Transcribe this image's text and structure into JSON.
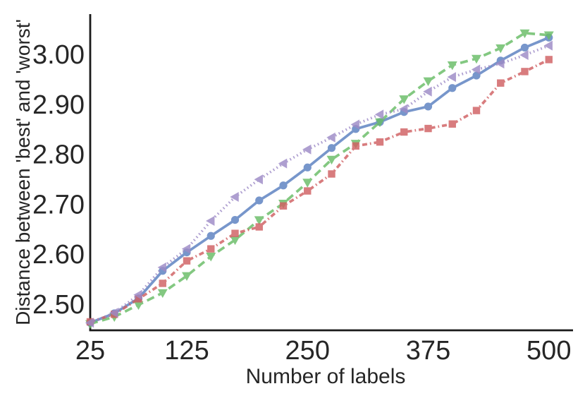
{
  "figure": {
    "background": "#ffffff",
    "text_color": "#262626",
    "axis_color": "#1a1a1a"
  },
  "chart_data": {
    "type": "line",
    "title": "",
    "xlabel": "Number of labels",
    "ylabel": "Distance between 'best' and 'worst'",
    "grid": false,
    "legend": "none",
    "xlim": [
      25,
      525
    ],
    "ylim": [
      2.449,
      3.082
    ],
    "x_ticks": [
      "25",
      "125",
      "250",
      "375",
      "500"
    ],
    "y_ticks": [
      "2.50",
      "2.60",
      "2.70",
      "2.80",
      "2.90",
      "3.00"
    ],
    "x": [
      25,
      50,
      75,
      100,
      125,
      150,
      175,
      200,
      225,
      250,
      275,
      300,
      325,
      350,
      375,
      400,
      425,
      450,
      475,
      500
    ],
    "series": [
      {
        "name": "blue-solid-circle",
        "color": "#5A7FC0",
        "linestyle": "solid",
        "marker": "circle",
        "values": [
          2.464,
          2.483,
          2.513,
          2.568,
          2.605,
          2.638,
          2.67,
          2.709,
          2.739,
          2.775,
          2.814,
          2.852,
          2.866,
          2.886,
          2.897,
          2.934,
          2.959,
          2.989,
          3.015,
          3.035
        ]
      },
      {
        "name": "green-dashed-triangle-down",
        "color": "#68BD66",
        "linestyle": "dashed",
        "marker": "triangle-down",
        "values": [
          2.462,
          2.476,
          2.5,
          2.524,
          2.558,
          2.597,
          2.63,
          2.67,
          2.703,
          2.745,
          2.791,
          2.823,
          2.866,
          2.912,
          2.948,
          2.98,
          2.993,
          3.014,
          3.044,
          3.04
        ]
      },
      {
        "name": "red-dashdot-square",
        "color": "#D06062",
        "linestyle": "dashdot",
        "marker": "square",
        "values": [
          2.466,
          2.481,
          2.512,
          2.543,
          2.588,
          2.612,
          2.643,
          2.656,
          2.698,
          2.728,
          2.762,
          2.818,
          2.826,
          2.846,
          2.853,
          2.862,
          2.889,
          2.944,
          2.967,
          2.991
        ]
      },
      {
        "name": "purple-dotted-triangle-left",
        "color": "#9D8AC6",
        "linestyle": "dotted",
        "marker": "triangle-left",
        "values": [
          2.464,
          2.484,
          2.52,
          2.575,
          2.612,
          2.668,
          2.716,
          2.751,
          2.783,
          2.811,
          2.835,
          2.861,
          2.881,
          2.892,
          2.927,
          2.956,
          2.971,
          2.983,
          3.0,
          3.019
        ]
      }
    ]
  }
}
